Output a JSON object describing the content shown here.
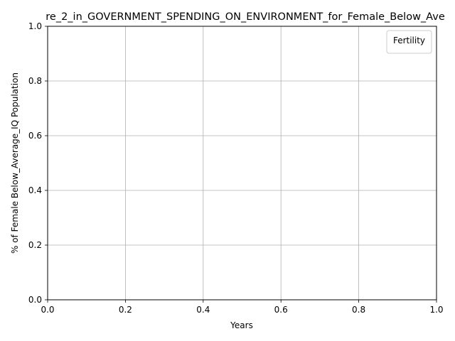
{
  "chart_data": {
    "type": "line",
    "title": "re_2_in_GOVERNMENT_SPENDING_ON_ENVIRONMENT_for_Female_Below_Ave",
    "xlabel": "Years",
    "ylabel": "% of Female Below_Average_IQ Population",
    "xlim": [
      0.0,
      1.0
    ],
    "ylim": [
      0.0,
      1.0
    ],
    "xticks": [
      "0.0",
      "0.2",
      "0.4",
      "0.6",
      "0.8",
      "1.0"
    ],
    "yticks": [
      "0.0",
      "0.2",
      "0.4",
      "0.6",
      "0.8",
      "1.0"
    ],
    "grid": true,
    "legend": {
      "title": "Fertility",
      "placement": "top-right",
      "entries": []
    },
    "series": []
  },
  "colors": {
    "grid": "#b0b0b0",
    "axes": "#000000",
    "background": "#ffffff"
  }
}
